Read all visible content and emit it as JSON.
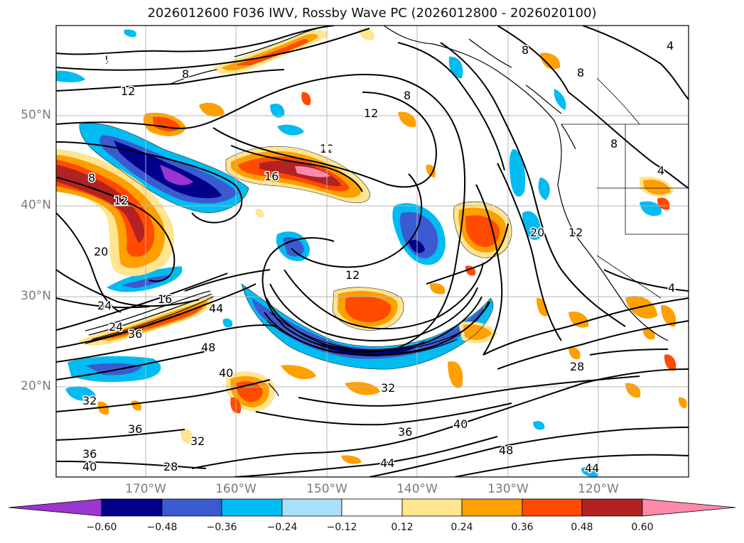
{
  "title": "2026012600 F036 IWV, Rossby Wave PC (2026012800 - 2026020100)",
  "map": {
    "lat_labels": [
      "50°N",
      "40°N",
      "30°N",
      "20°N"
    ],
    "lon_labels": [
      "170°W",
      "160°W",
      "150°W",
      "140°W",
      "130°W",
      "120°W"
    ],
    "iwv_contour_labels": [
      "4",
      "8",
      "12",
      "8",
      "12",
      "16",
      "12",
      "12",
      "8",
      "8",
      "4",
      "4",
      "8",
      "12",
      "16",
      "12",
      "20",
      "24",
      "24",
      "36",
      "44",
      "48",
      "40",
      "32",
      "36",
      "36",
      "40",
      "28",
      "32",
      "32",
      "36",
      "40",
      "44",
      "48",
      "20",
      "28",
      "44",
      "12",
      "8",
      "4",
      "4"
    ]
  },
  "colorbar": {
    "ticks": [
      "−0.60",
      "−0.48",
      "−0.36",
      "−0.24",
      "−0.12",
      "0.12",
      "0.24",
      "0.36",
      "0.48",
      "0.60"
    ],
    "colors": [
      "#9a35d0",
      "#00008b",
      "#3c5ad0",
      "#00bcf2",
      "#abe0fb",
      "#ffffff",
      "#ffe590",
      "#ff9f00",
      "#ff4a00",
      "#b22222",
      "#ff89ab"
    ]
  }
}
